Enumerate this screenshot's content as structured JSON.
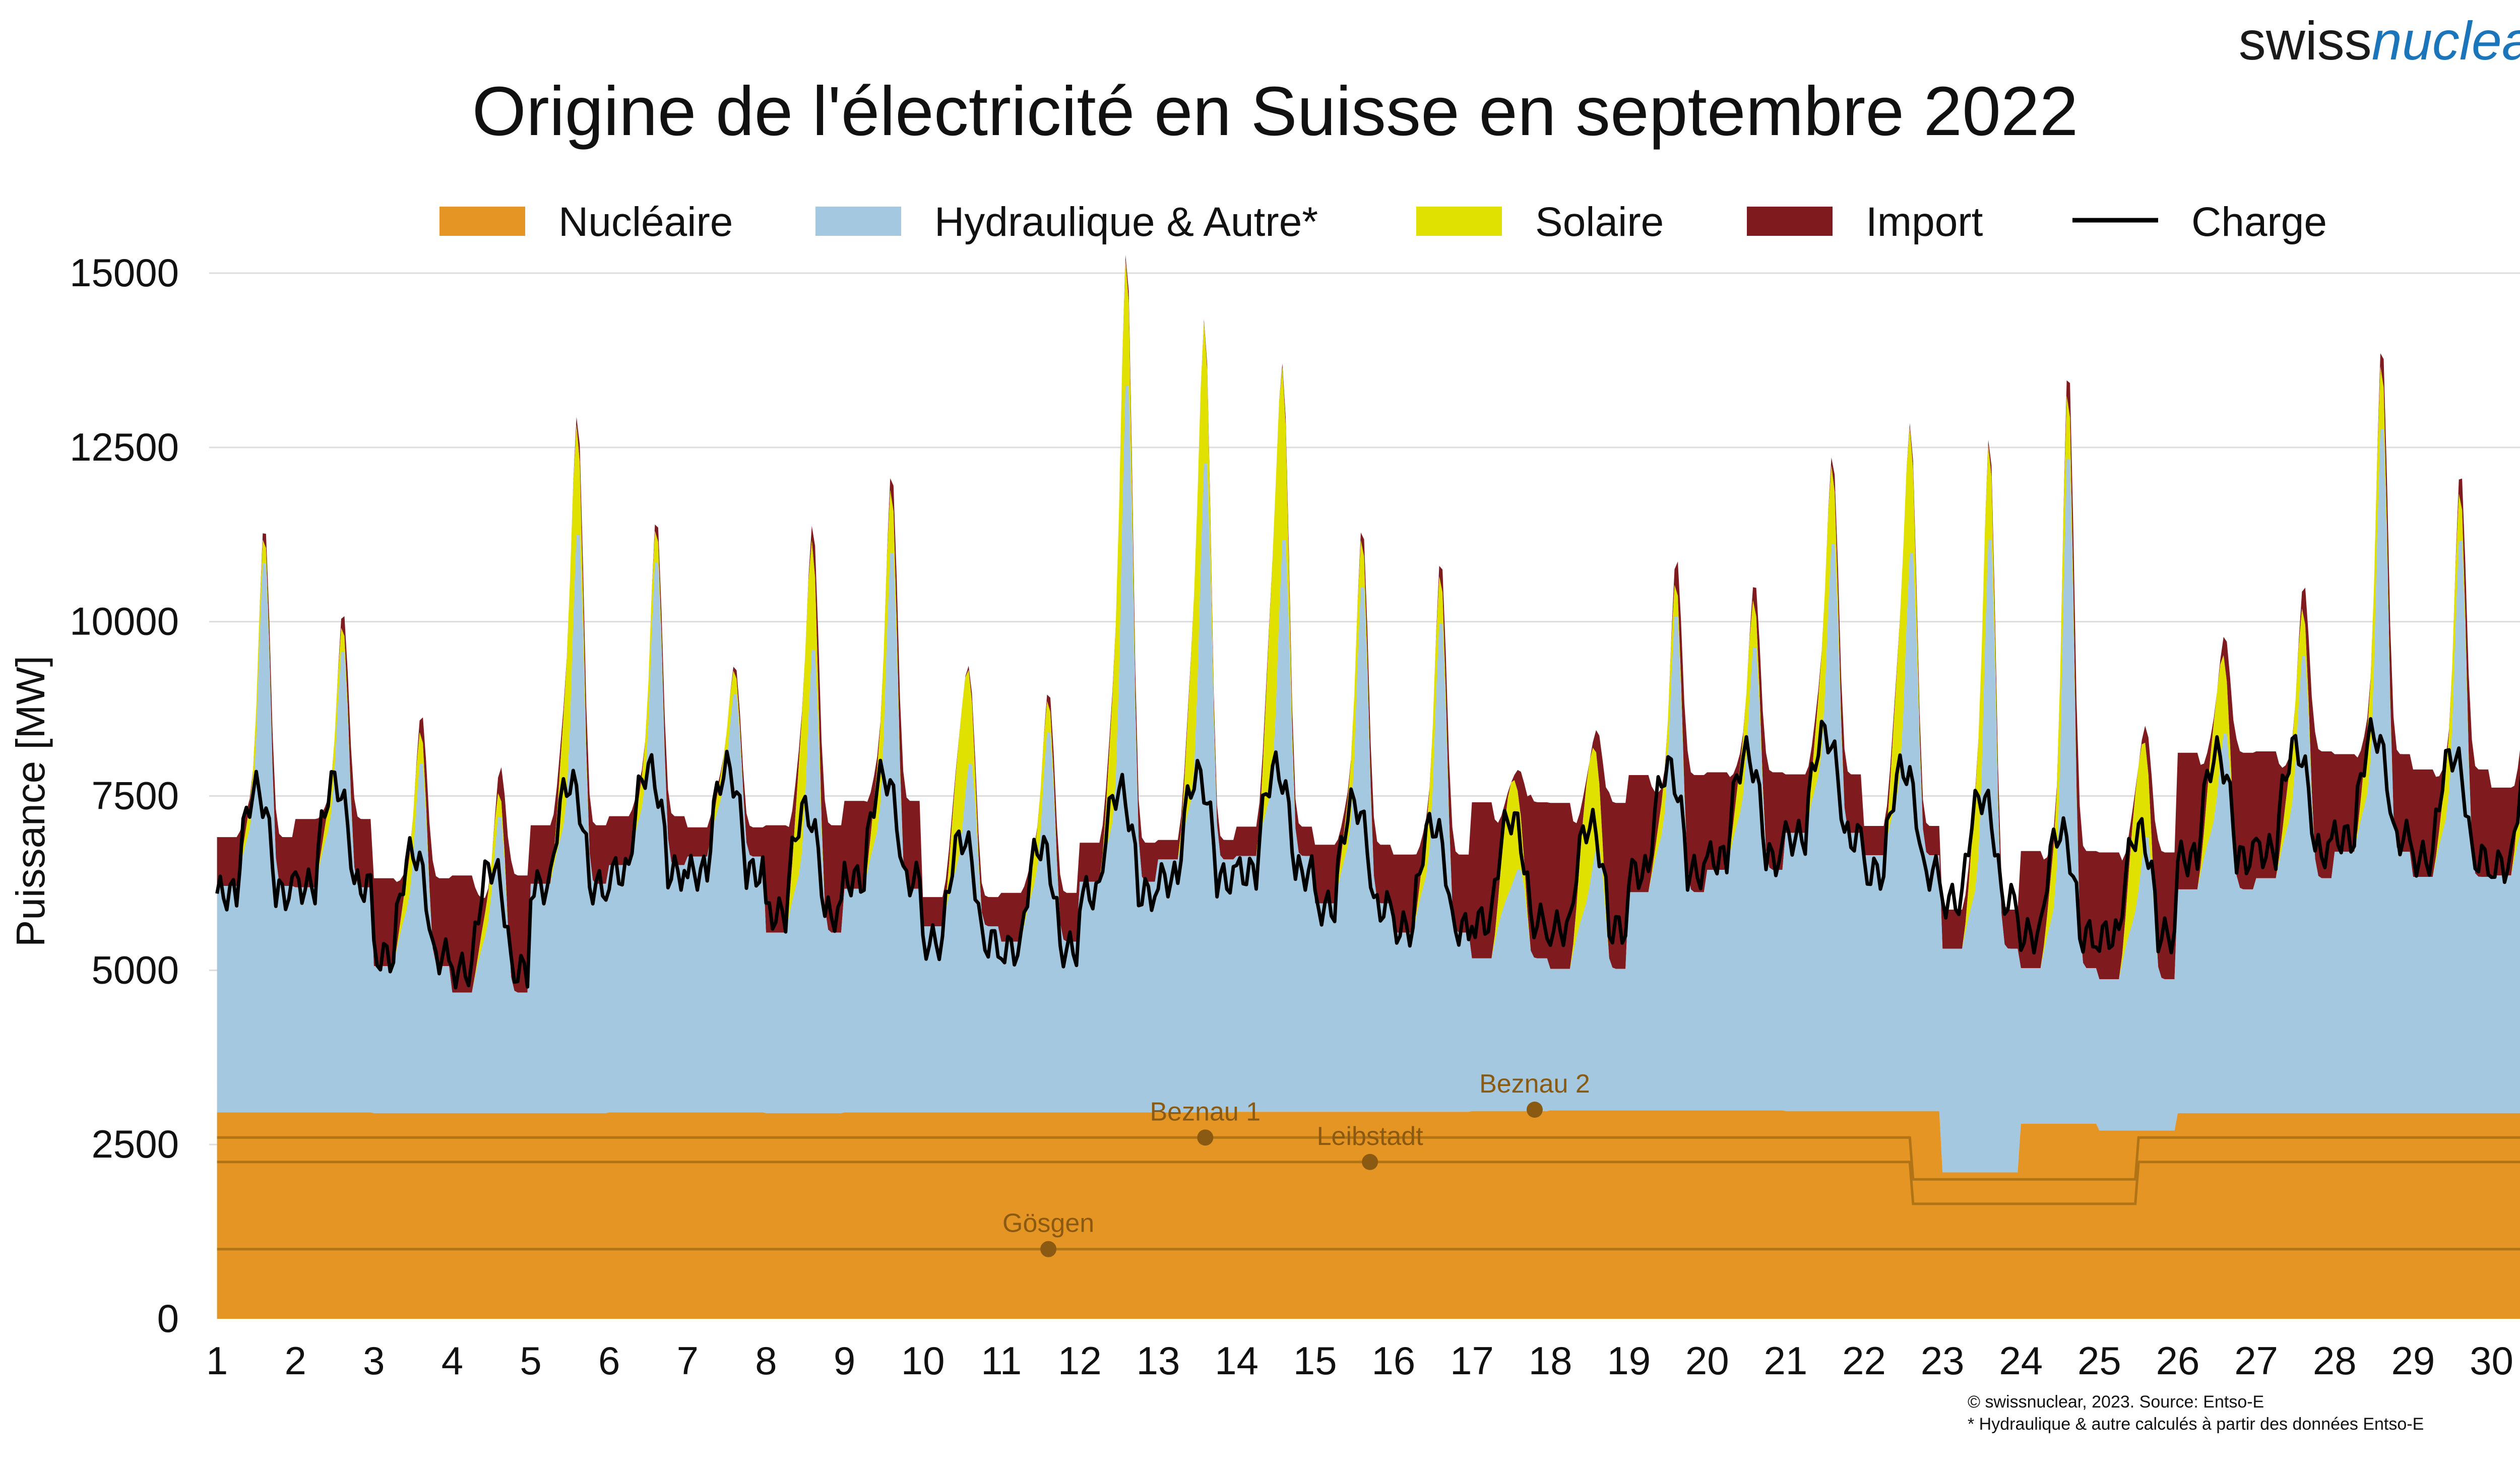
{
  "brand": {
    "part1": "swiss",
    "part2": "nuclear"
  },
  "chart_data": {
    "type": "area",
    "title": "Origine de l'électricité en Suisse en septembre 2022",
    "ylabel": "Puissance [MW]",
    "xlabel": "",
    "ylim": [
      0,
      15000
    ],
    "xlim": [
      0.9,
      30.8
    ],
    "yticks": [
      "0",
      "2500",
      "5000",
      "7500",
      "10000",
      "12500",
      "15000"
    ],
    "ytick_values": [
      0,
      2500,
      5000,
      7500,
      10000,
      12500,
      15000
    ],
    "xticks": [
      "1",
      "2",
      "3",
      "4",
      "5",
      "6",
      "7",
      "8",
      "9",
      "10",
      "11",
      "12",
      "13",
      "14",
      "15",
      "16",
      "17",
      "18",
      "19",
      "20",
      "21",
      "22",
      "23",
      "24",
      "25",
      "26",
      "27",
      "28",
      "29",
      "30"
    ],
    "grid": true,
    "legend_position": "top",
    "legend": [
      {
        "label": "Nucléaire",
        "color": "#e59524",
        "kind": "area"
      },
      {
        "label": "Hydraulique & Autre*",
        "color": "#a3c8e0",
        "kind": "area"
      },
      {
        "label": "Solaire",
        "color": "#e1e100",
        "kind": "area"
      },
      {
        "label": "Import",
        "color": "#7f1a1f",
        "kind": "area"
      },
      {
        "label": "Charge",
        "color": "#000000",
        "kind": "line"
      }
    ],
    "series": [
      {
        "name": "Nucléaire",
        "day_avg": [
          2960,
          2960,
          2950,
          2950,
          2950,
          2960,
          2960,
          2950,
          2960,
          2960,
          2960,
          2960,
          2960,
          2970,
          2970,
          2970,
          2980,
          2990,
          2990,
          2990,
          2980,
          2980,
          2100,
          2800,
          2700,
          2950,
          2950,
          2950,
          2950,
          2950
        ]
      },
      {
        "name": "Hydraulique & Autre*",
        "day_peak": [
          11300,
          10100,
          8600,
          8000,
          11800,
          11300,
          9200,
          10400,
          11700,
          8200,
          8800,
          13900,
          12600,
          11500,
          11000,
          10600,
          7400,
          7800,
          10900,
          10300,
          11600,
          11300,
          12500,
          13500,
          8000,
          9300,
          10400,
          13600,
          12000,
          12300
        ]
      },
      {
        "name": "Solaire",
        "day_avg": [
          150,
          150,
          200,
          150,
          700,
          200,
          150,
          700,
          400,
          600,
          200,
          800,
          900,
          1100,
          300,
          300,
          500,
          600,
          200,
          300,
          500,
          800,
          600,
          400,
          600,
          500,
          300,
          400,
          300,
          600
        ]
      },
      {
        "name": "Import",
        "day_avg": [
          500,
          700,
          900,
          1200,
          600,
          500,
          300,
          1100,
          900,
          300,
          500,
          400,
          200,
          300,
          600,
          800,
          1600,
          1700,
          1200,
          1000,
          600,
          300,
          400,
          1200,
          1300,
          1400,
          1300,
          1000,
          1100,
          900
        ]
      },
      {
        "name": "Charge",
        "day_avg": [
          7000,
          7100,
          6100,
          5900,
          7100,
          7300,
          7300,
          6700,
          7200,
          6300,
          6200,
          7000,
          7200,
          7300,
          6800,
          6500,
          6600,
          6500,
          7300,
          7500,
          7800,
          7300,
          6900,
          6400,
          6400,
          7500,
          7600,
          7800,
          7500,
          7400
        ]
      }
    ],
    "plant_labels": [
      {
        "label": "Beznau 1",
        "x": 13.6,
        "y": 2600
      },
      {
        "label": "Beznau 2",
        "x": 17.8,
        "y": 3000
      },
      {
        "label": "Leibstadt",
        "x": 15.7,
        "y": 2250
      },
      {
        "label": "Gösgen",
        "x": 11.6,
        "y": 1000
      }
    ]
  },
  "footnotes": {
    "source": "© swissnuclear, 2023. Source: Entso-E",
    "note": "* Hydraulique & autre calculés à partir des données Entso-E"
  }
}
